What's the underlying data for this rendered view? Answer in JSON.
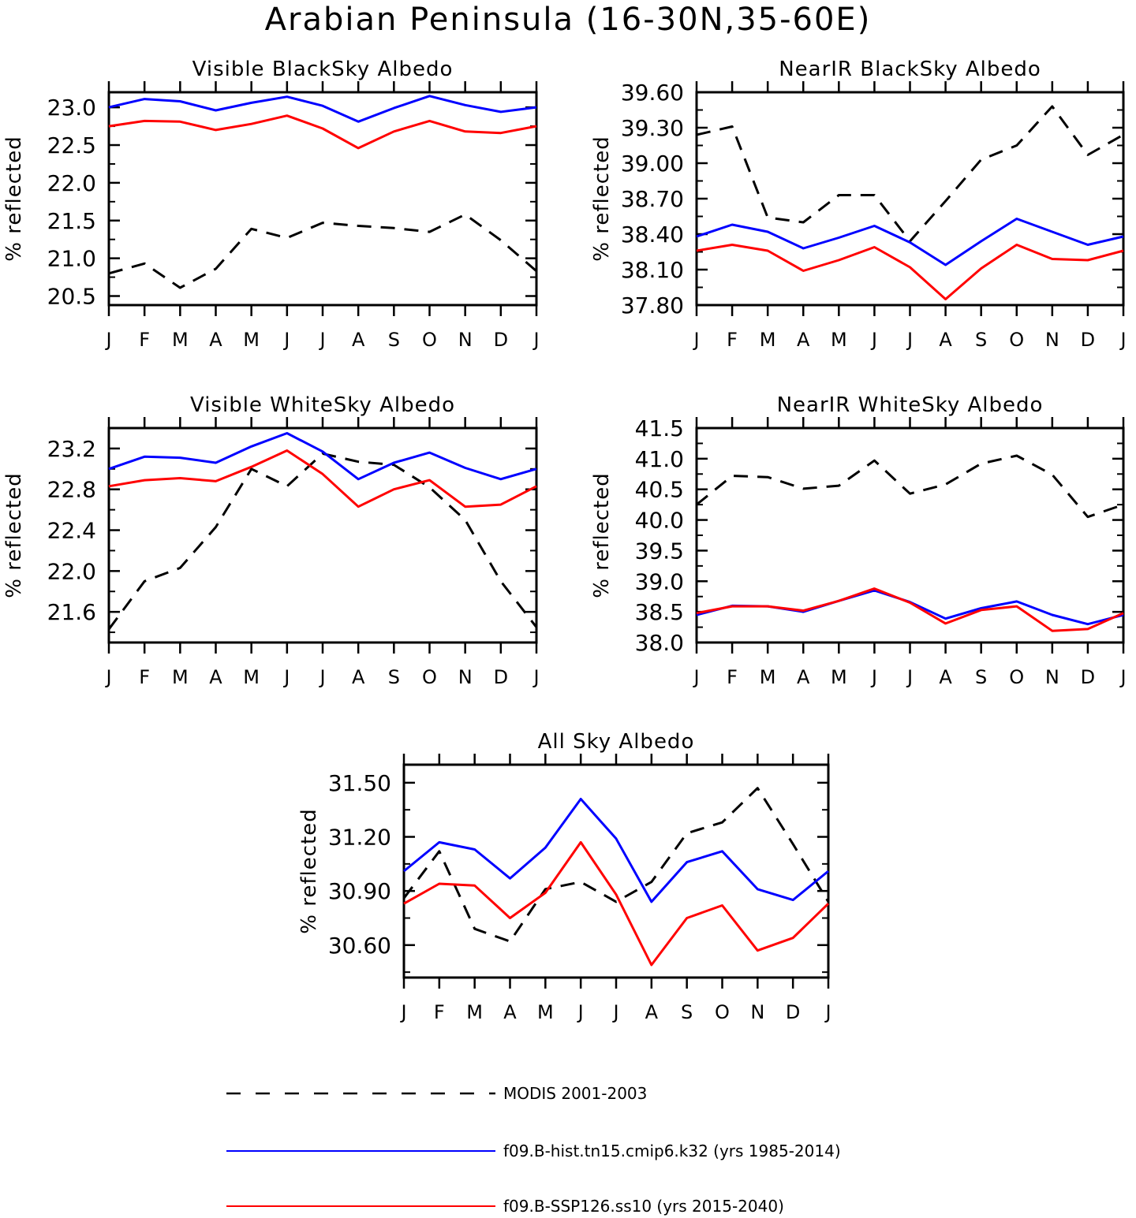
{
  "figure_title": "Arabian Peninsula (16-30N,35-60E)",
  "colors": {
    "modis": "#000000",
    "hist": "#0000ff",
    "ssp": "#ff0000"
  },
  "legend": [
    {
      "key": "modis",
      "label": "MODIS 2001-2003",
      "style": "dashed"
    },
    {
      "key": "hist",
      "label": "f09.B-hist.tn15.cmip6.k32 (yrs 1985-2014)",
      "style": "solid"
    },
    {
      "key": "ssp",
      "label": "f09.B-SSP126.ss10 (yrs 2015-2040)",
      "style": "solid"
    }
  ],
  "chart_data": [
    {
      "id": "vis-black",
      "type": "line",
      "title": "Visible BlackSky Albedo",
      "ylabel": "% reflected",
      "categories": [
        "J",
        "F",
        "M",
        "A",
        "M",
        "J",
        "J",
        "A",
        "S",
        "O",
        "N",
        "D",
        "J"
      ],
      "ylim": [
        20.38,
        23.2
      ],
      "yticks": [
        "20.5",
        "21.0",
        "21.5",
        "22.0",
        "22.5",
        "23.0"
      ],
      "series": [
        {
          "key": "modis",
          "values": [
            20.8,
            20.93,
            20.61,
            20.86,
            21.39,
            21.27,
            21.47,
            21.43,
            21.4,
            21.35,
            21.58,
            21.24,
            20.83
          ]
        },
        {
          "key": "hist",
          "values": [
            23.0,
            23.11,
            23.08,
            22.96,
            23.06,
            23.14,
            23.02,
            22.81,
            22.99,
            23.15,
            23.03,
            22.94,
            23.0
          ]
        },
        {
          "key": "ssp",
          "values": [
            22.75,
            22.82,
            22.81,
            22.7,
            22.78,
            22.89,
            22.72,
            22.46,
            22.68,
            22.82,
            22.68,
            22.66,
            22.75
          ]
        }
      ]
    },
    {
      "id": "nir-black",
      "type": "line",
      "title": "NearIR BlackSky Albedo",
      "ylabel": "% reflected",
      "categories": [
        "J",
        "F",
        "M",
        "A",
        "M",
        "J",
        "J",
        "A",
        "S",
        "O",
        "N",
        "D",
        "J"
      ],
      "ylim": [
        37.8,
        39.6
      ],
      "yticks": [
        "37.80",
        "38.10",
        "38.40",
        "38.70",
        "39.00",
        "39.30",
        "39.60"
      ],
      "series": [
        {
          "key": "modis",
          "values": [
            39.24,
            39.31,
            38.54,
            38.5,
            38.73,
            38.73,
            38.34,
            38.68,
            39.03,
            39.15,
            39.48,
            39.07,
            39.24
          ]
        },
        {
          "key": "hist",
          "values": [
            38.38,
            38.48,
            38.42,
            38.28,
            38.37,
            38.47,
            38.33,
            38.14,
            38.34,
            38.53,
            38.42,
            38.31,
            38.38
          ]
        },
        {
          "key": "ssp",
          "values": [
            38.26,
            38.31,
            38.26,
            38.09,
            38.18,
            38.29,
            38.12,
            37.85,
            38.11,
            38.31,
            38.19,
            38.18,
            38.26
          ]
        }
      ]
    },
    {
      "id": "vis-white",
      "type": "line",
      "title": "Visible WhiteSky Albedo",
      "ylabel": "% reflected",
      "categories": [
        "J",
        "F",
        "M",
        "A",
        "M",
        "J",
        "J",
        "A",
        "S",
        "O",
        "N",
        "D",
        "J"
      ],
      "ylim": [
        21.3,
        23.4
      ],
      "yticks": [
        "21.6",
        "22.0",
        "22.4",
        "22.8",
        "23.2"
      ],
      "series": [
        {
          "key": "modis",
          "values": [
            21.43,
            21.9,
            22.03,
            22.43,
            23.0,
            22.83,
            23.15,
            23.07,
            23.04,
            22.82,
            22.5,
            21.9,
            21.45
          ]
        },
        {
          "key": "hist",
          "values": [
            23.0,
            23.12,
            23.11,
            23.06,
            23.22,
            23.35,
            23.17,
            22.9,
            23.06,
            23.16,
            23.01,
            22.9,
            23.0
          ]
        },
        {
          "key": "ssp",
          "values": [
            22.83,
            22.89,
            22.91,
            22.88,
            23.02,
            23.18,
            22.95,
            22.63,
            22.8,
            22.89,
            22.63,
            22.65,
            22.83
          ]
        }
      ]
    },
    {
      "id": "nir-white",
      "type": "line",
      "title": "NearIR WhiteSky Albedo",
      "ylabel": "% reflected",
      "categories": [
        "J",
        "F",
        "M",
        "A",
        "M",
        "J",
        "J",
        "A",
        "S",
        "O",
        "N",
        "D",
        "J"
      ],
      "ylim": [
        38.0,
        41.5
      ],
      "yticks": [
        "38.0",
        "38.5",
        "39.0",
        "39.5",
        "40.0",
        "40.5",
        "41.0",
        "41.5"
      ],
      "series": [
        {
          "key": "modis",
          "values": [
            40.25,
            40.72,
            40.7,
            40.51,
            40.56,
            40.97,
            40.43,
            40.58,
            40.92,
            41.05,
            40.74,
            40.05,
            40.25
          ]
        },
        {
          "key": "hist",
          "values": [
            38.45,
            38.6,
            38.59,
            38.5,
            38.68,
            38.85,
            38.66,
            38.39,
            38.56,
            38.67,
            38.45,
            38.3,
            38.45
          ]
        },
        {
          "key": "ssp",
          "values": [
            38.48,
            38.59,
            38.59,
            38.52,
            38.68,
            38.88,
            38.65,
            38.31,
            38.53,
            38.59,
            38.19,
            38.22,
            38.48
          ]
        }
      ]
    },
    {
      "id": "all-sky",
      "type": "line",
      "title": "All Sky Albedo",
      "ylabel": "% reflected",
      "categories": [
        "J",
        "F",
        "M",
        "A",
        "M",
        "J",
        "J",
        "A",
        "S",
        "O",
        "N",
        "D",
        "J"
      ],
      "ylim": [
        30.42,
        31.6
      ],
      "yticks": [
        "30.60",
        "30.90",
        "31.20",
        "31.50"
      ],
      "series": [
        {
          "key": "modis",
          "values": [
            30.86,
            31.12,
            30.69,
            30.62,
            30.91,
            30.95,
            30.84,
            30.95,
            31.22,
            31.28,
            31.47,
            31.16,
            30.84
          ]
        },
        {
          "key": "hist",
          "values": [
            31.01,
            31.17,
            31.13,
            30.97,
            31.14,
            31.41,
            31.19,
            30.84,
            31.06,
            31.12,
            30.91,
            30.85,
            31.01
          ]
        },
        {
          "key": "ssp",
          "values": [
            30.83,
            30.94,
            30.93,
            30.75,
            30.89,
            31.17,
            30.88,
            30.49,
            30.75,
            30.82,
            30.57,
            30.64,
            30.83
          ]
        }
      ]
    }
  ]
}
